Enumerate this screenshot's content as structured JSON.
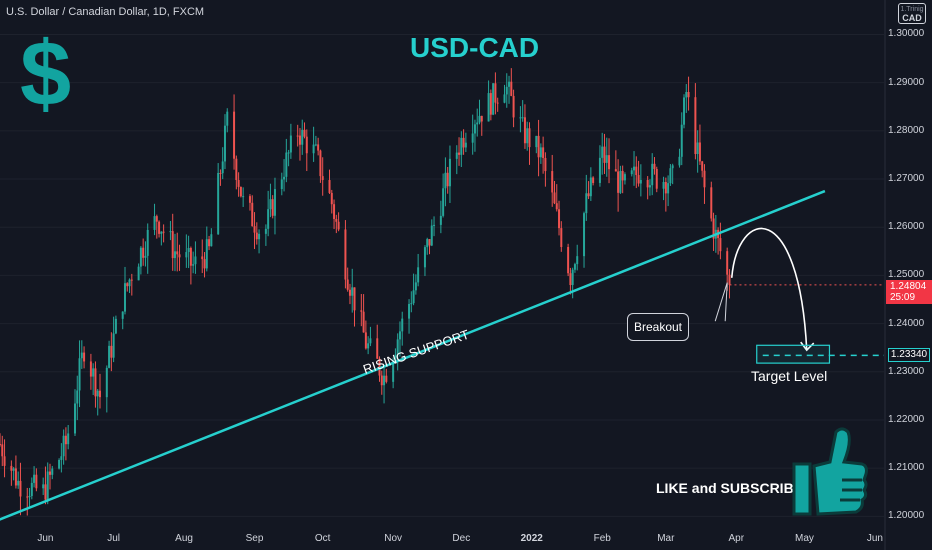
{
  "header": {
    "instrument": "U.S. Dollar / Canadian Dollar, 1D, FXCM",
    "badge_top": "1.Trinig",
    "badge_main": "CAD"
  },
  "annotations": {
    "title": "USD-CAD",
    "dollar_symbol": "$",
    "rising_support": "RISING SUPPORT",
    "breakout": "Breakout",
    "target_level": "Target Level",
    "like_subscribe": "LIKE and SUBSCRIBE"
  },
  "price_axis": {
    "labels": [
      "1.30000",
      "1.29000",
      "1.28000",
      "1.27000",
      "1.26000",
      "1.25000",
      "1.24000",
      "1.23000",
      "1.22000",
      "1.21000",
      "1.20000"
    ],
    "current_price": "1.24804",
    "countdown": "25:09",
    "target_price": "1.23340"
  },
  "time_axis": {
    "labels": [
      "Jun",
      "Jul",
      "Aug",
      "Sep",
      "Oct",
      "Nov",
      "Dec",
      "2022",
      "Feb",
      "Mar",
      "Apr",
      "May",
      "Jun"
    ]
  },
  "colors": {
    "background": "#131722",
    "up_candle": "#26a69a",
    "down_candle": "#ef5350",
    "accent": "#26d0ce",
    "current_price_tag": "#f23645"
  },
  "icons": {
    "dollar": "dollar-icon",
    "thumbs_up": "thumbs-up-icon"
  },
  "chart_data": {
    "type": "candlestick",
    "title": "USD-CAD",
    "ylim": [
      1.198,
      1.303
    ],
    "xlim": [
      "2021-05-12",
      "2022-06-05"
    ],
    "x_ticks": [
      "Jun",
      "Jul",
      "Aug",
      "Sep",
      "Oct",
      "Nov",
      "Dec",
      "2022",
      "Feb",
      "Mar",
      "Apr",
      "May",
      "Jun"
    ],
    "y_ticks": [
      1.3,
      1.29,
      1.28,
      1.27,
      1.26,
      1.25,
      1.24,
      1.23,
      1.22,
      1.21,
      1.2
    ],
    "price_path": [
      [
        "2021-05-12",
        1.215
      ],
      [
        "2021-05-20",
        1.207
      ],
      [
        "2021-05-31",
        1.205
      ],
      [
        "2021-06-10",
        1.215
      ],
      [
        "2021-06-18",
        1.235
      ],
      [
        "2021-06-25",
        1.225
      ],
      [
        "2021-07-05",
        1.245
      ],
      [
        "2021-07-10",
        1.252
      ],
      [
        "2021-07-20",
        1.262
      ],
      [
        "2021-07-28",
        1.255
      ],
      [
        "2021-08-05",
        1.252
      ],
      [
        "2021-08-12",
        1.255
      ],
      [
        "2021-08-20",
        1.282
      ],
      [
        "2021-08-27",
        1.265
      ],
      [
        "2021-09-05",
        1.258
      ],
      [
        "2021-09-12",
        1.27
      ],
      [
        "2021-09-20",
        1.28
      ],
      [
        "2021-09-28",
        1.275
      ],
      [
        "2021-10-05",
        1.265
      ],
      [
        "2021-10-12",
        1.25
      ],
      [
        "2021-10-20",
        1.236
      ],
      [
        "2021-10-28",
        1.229
      ],
      [
        "2021-11-05",
        1.24
      ],
      [
        "2021-11-12",
        1.25
      ],
      [
        "2021-11-20",
        1.262
      ],
      [
        "2021-11-28",
        1.275
      ],
      [
        "2021-12-05",
        1.282
      ],
      [
        "2021-12-12",
        1.285
      ],
      [
        "2021-12-20",
        1.29
      ],
      [
        "2021-12-28",
        1.28
      ],
      [
        "2022-01-05",
        1.275
      ],
      [
        "2022-01-12",
        1.262
      ],
      [
        "2022-01-18",
        1.25
      ],
      [
        "2022-01-25",
        1.265
      ],
      [
        "2022-02-01",
        1.275
      ],
      [
        "2022-02-10",
        1.268
      ],
      [
        "2022-02-18",
        1.272
      ],
      [
        "2022-02-26",
        1.27
      ],
      [
        "2022-03-05",
        1.27
      ],
      [
        "2022-03-10",
        1.288
      ],
      [
        "2022-03-15",
        1.275
      ],
      [
        "2022-03-20",
        1.263
      ],
      [
        "2022-03-25",
        1.255
      ],
      [
        "2022-03-29",
        1.248
      ]
    ],
    "rising_support_line": {
      "start": [
        "2021-05-10",
        1.199
      ],
      "end": [
        "2022-05-10",
        1.2675
      ],
      "label": "RISING SUPPORT"
    },
    "projection_arrow": {
      "from": [
        "2022-03-30",
        1.2495
      ],
      "peak": [
        "2022-04-11",
        1.26
      ],
      "to": [
        "2022-05-02",
        1.2345
      ]
    },
    "target_zone": {
      "label": "Target Level",
      "price": 1.2334,
      "range": [
        1.2318,
        1.2355
      ],
      "x_range": [
        "2022-04-10",
        "2022-05-12"
      ]
    },
    "current_price": 1.24804,
    "current_price_x": "2022-03-29"
  }
}
